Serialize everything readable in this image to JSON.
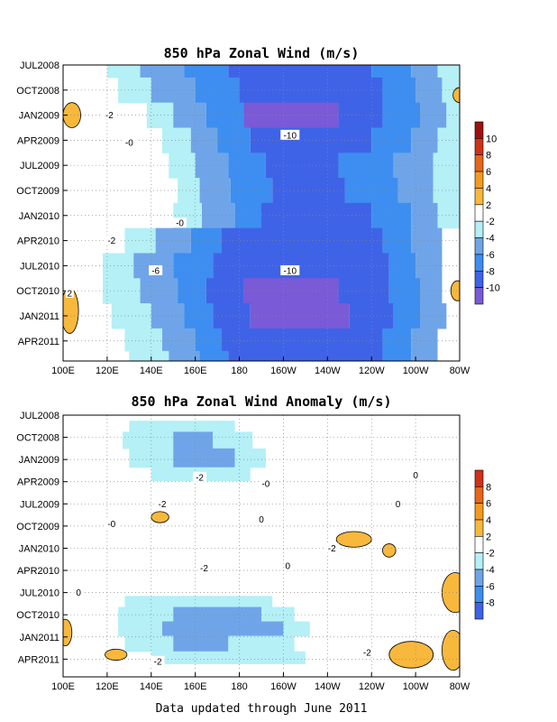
{
  "footer": "Data updated through June 2011",
  "colors": {
    "n10": "#7a5ad6",
    "n8": "#3f63e6",
    "n6": "#3d8ef0",
    "n4": "#6fa5e8",
    "n2": "#b4f0f6",
    "zero": "#ffffff",
    "p2": "#f8b83c",
    "p4": "#f49a20",
    "p6": "#e8661a",
    "p8": "#d03218",
    "p10": "#a01010"
  },
  "chart_data": [
    {
      "type": "heatmap",
      "title": "850 hPa Zonal Wind (m/s)",
      "x_tick_labels": [
        "100E",
        "120E",
        "140E",
        "160E",
        "180",
        "160W",
        "140W",
        "120W",
        "100W",
        "80W"
      ],
      "y_tick_labels": [
        "JUL2008",
        "OCT2008",
        "JAN2009",
        "APR2009",
        "JUL2009",
        "OCT2009",
        "JAN2010",
        "APR2010",
        "JUL2010",
        "OCT2010",
        "JAN2011",
        "APR2011"
      ],
      "colorbar_labels": [
        "10",
        "8",
        "6",
        "4",
        "2",
        "-2",
        "-4",
        "-6",
        "-8",
        "-10"
      ],
      "contour_labels": [
        {
          "text": "-10",
          "lon": -157,
          "t": 2.8
        },
        {
          "text": "-10",
          "lon": -157,
          "t": 8.2
        },
        {
          "text": "-6",
          "lon": 142,
          "t": 8.2
        },
        {
          "text": "-2",
          "lon": 122,
          "t": 7.0
        },
        {
          "text": "-2",
          "lon": 121,
          "t": 2.0
        },
        {
          "text": "-0",
          "lon": 130,
          "t": 3.1
        },
        {
          "text": "-0",
          "lon": 153,
          "t": 6.3
        },
        {
          "text": "2",
          "lon": 103,
          "t": 9.1
        }
      ],
      "grid": true
    },
    {
      "type": "heatmap",
      "title": "850 hPa Zonal Wind Anomaly (m/s)",
      "x_tick_labels": [
        "100E",
        "120E",
        "140E",
        "160E",
        "180",
        "160W",
        "140W",
        "120W",
        "100W",
        "80W"
      ],
      "y_tick_labels": [
        "JUL2008",
        "OCT2008",
        "JAN2009",
        "APR2009",
        "JUL2009",
        "OCT2009",
        "JAN2010",
        "APR2010",
        "JUL2010",
        "OCT2010",
        "JAN2011",
        "APR2011"
      ],
      "colorbar_labels": [
        "8",
        "6",
        "4",
        "2",
        "-2",
        "-4",
        "-6",
        "-8"
      ],
      "contour_labels": [
        {
          "text": "-2",
          "lon": 162,
          "t": 2.8
        },
        {
          "text": "-0",
          "lon": -168,
          "t": 3.1
        },
        {
          "text": "0",
          "lon": -100,
          "t": 2.7
        },
        {
          "text": "0",
          "lon": -108,
          "t": 4.0
        },
        {
          "text": "-2",
          "lon": 145,
          "t": 4.0
        },
        {
          "text": "-0",
          "lon": 122,
          "t": 4.9
        },
        {
          "text": "0",
          "lon": -170,
          "t": 4.7
        },
        {
          "text": "-2",
          "lon": -138,
          "t": 6.0
        },
        {
          "text": "-2",
          "lon": 164,
          "t": 6.9
        },
        {
          "text": "0",
          "lon": -158,
          "t": 6.8
        },
        {
          "text": "0",
          "lon": 107,
          "t": 8.0
        },
        {
          "text": "-2",
          "lon": -122,
          "t": 10.7
        },
        {
          "text": "-2",
          "lon": 143,
          "t": 11.1
        }
      ],
      "grid": true
    }
  ]
}
